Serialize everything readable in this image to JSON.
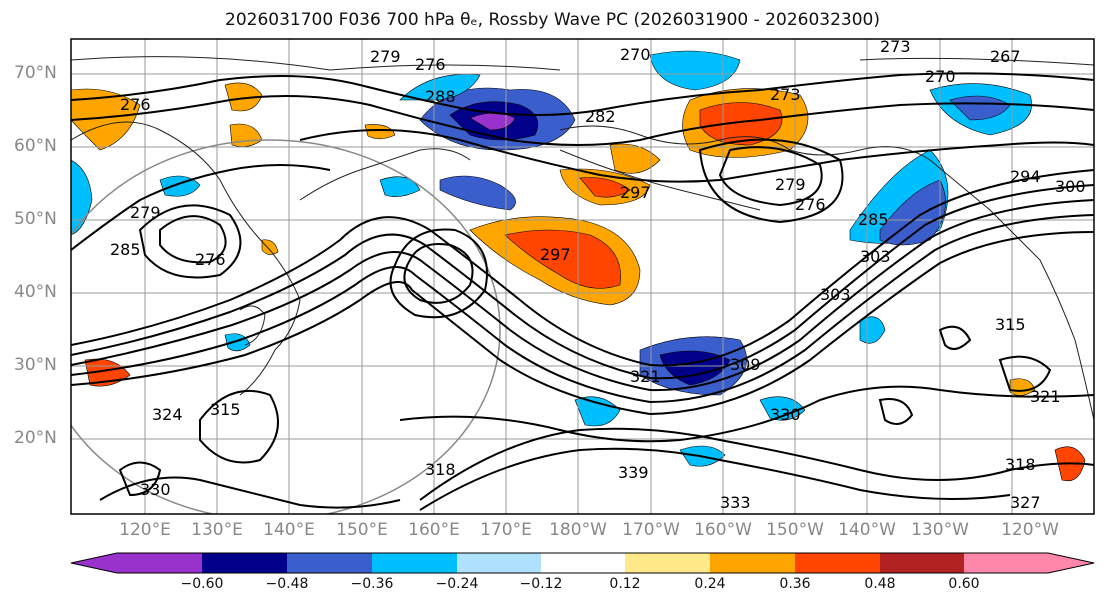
{
  "title": "2026031700 F036 700 hPa θₑ, Rossby Wave PC (2026031900 - 2026032300)",
  "lat_labels": [
    "70°N",
    "60°N",
    "50°N",
    "40°N",
    "30°N",
    "20°N"
  ],
  "lon_labels": [
    "120°E",
    "130°E",
    "140°E",
    "150°E",
    "160°E",
    "170°E",
    "180°W",
    "170°W",
    "160°W",
    "150°W",
    "140°W",
    "130°W",
    "120°W"
  ],
  "contour_labels": [
    "270",
    "273",
    "267",
    "279",
    "276",
    "288",
    "282",
    "270",
    "273",
    "279",
    "276",
    "297",
    "294",
    "300",
    "285",
    "303",
    "279",
    "285",
    "276",
    "297",
    "309",
    "321",
    "315",
    "318",
    "339",
    "330",
    "333",
    "321",
    "318",
    "327",
    "315",
    "324",
    "330",
    "276",
    "303"
  ],
  "colorbar": {
    "ticks": [
      "−0.60",
      "−0.48",
      "−0.36",
      "−0.24",
      "−0.12",
      "0.12",
      "0.24",
      "0.36",
      "0.48",
      "0.60"
    ],
    "colors": [
      "#9932CC",
      "#00008B",
      "#3A5FCD",
      "#00BFFF",
      "#B0E2FF",
      "#FFFFFF",
      "#FFE989",
      "#FFA500",
      "#FF4500",
      "#B22222",
      "#FF88AA"
    ]
  }
}
